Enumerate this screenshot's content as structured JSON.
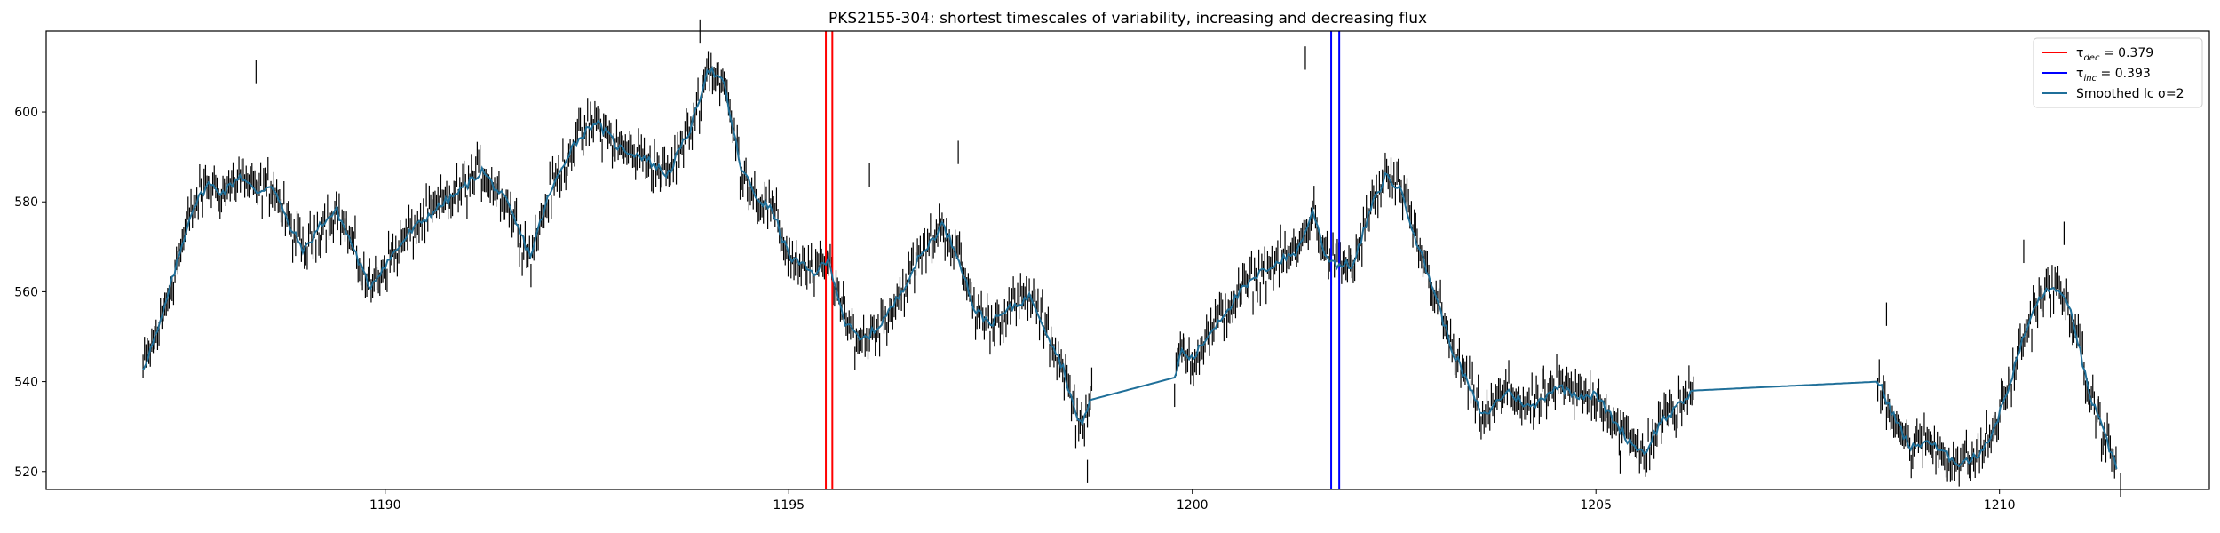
{
  "chart_data": {
    "type": "line",
    "title": "PKS2155-304: shortest timescales of variability, increasing and decreasing flux",
    "xlabel": "",
    "ylabel": "",
    "xlim": [
      1185.8,
      1212.6
    ],
    "ylim": [
      516,
      618
    ],
    "xticks": [
      1190,
      1195,
      1200,
      1205,
      1210
    ],
    "yticks": [
      520,
      540,
      560,
      580,
      600
    ],
    "grid": false,
    "legend_position": "top-right",
    "colors": {
      "dec": "#ff0000",
      "inc": "#0000ff",
      "smoothed": "#1f6f99",
      "errorbars": "#000000"
    },
    "vlines": [
      {
        "name": "dec",
        "x": [
          1195.46,
          1195.54
        ],
        "color": "#ff0000"
      },
      {
        "name": "inc",
        "x": [
          1201.72,
          1201.82
        ],
        "color": "#0000ff"
      }
    ],
    "legend": {
      "dec": {
        "symbol": "τ",
        "sub": "dec",
        "text": " = 0.379"
      },
      "inc": {
        "symbol": "τ",
        "sub": "inc",
        "text": " = 0.393"
      },
      "smoothed": {
        "text": "Smoothed lc σ=2"
      }
    },
    "smoothed_anchors": [
      [
        1187.0,
        543
      ],
      [
        1187.2,
        552
      ],
      [
        1187.4,
        565
      ],
      [
        1187.6,
        578
      ],
      [
        1187.8,
        584
      ],
      [
        1188.0,
        582
      ],
      [
        1188.2,
        586
      ],
      [
        1188.4,
        582
      ],
      [
        1188.6,
        584
      ],
      [
        1188.8,
        575
      ],
      [
        1189.0,
        569
      ],
      [
        1189.2,
        575
      ],
      [
        1189.4,
        578
      ],
      [
        1189.6,
        570
      ],
      [
        1189.8,
        561
      ],
      [
        1190.0,
        566
      ],
      [
        1190.3,
        573
      ],
      [
        1190.6,
        578
      ],
      [
        1190.9,
        582
      ],
      [
        1191.2,
        587
      ],
      [
        1191.5,
        580
      ],
      [
        1191.8,
        568
      ],
      [
        1192.0,
        580
      ],
      [
        1192.3,
        592
      ],
      [
        1192.6,
        598
      ],
      [
        1192.9,
        592
      ],
      [
        1193.2,
        590
      ],
      [
        1193.5,
        586
      ],
      [
        1193.8,
        597
      ],
      [
        1194.0,
        610
      ],
      [
        1194.2,
        606
      ],
      [
        1194.4,
        588
      ],
      [
        1194.6,
        581
      ],
      [
        1194.8,
        578
      ],
      [
        1195.0,
        568
      ],
      [
        1195.3,
        564
      ],
      [
        1195.5,
        567
      ],
      [
        1195.7,
        553
      ],
      [
        1195.9,
        549
      ],
      [
        1196.1,
        552
      ],
      [
        1196.3,
        557
      ],
      [
        1196.6,
        567
      ],
      [
        1196.9,
        575
      ],
      [
        1197.1,
        568
      ],
      [
        1197.3,
        556
      ],
      [
        1197.5,
        553
      ],
      [
        1197.8,
        557
      ],
      [
        1198.0,
        559
      ],
      [
        1198.2,
        551
      ],
      [
        1198.4,
        543
      ],
      [
        1198.6,
        530
      ],
      [
        1198.75,
        536
      ],
      [
        1199.8,
        541
      ],
      [
        1199.85,
        547
      ],
      [
        1200.0,
        545
      ],
      [
        1200.3,
        553
      ],
      [
        1200.6,
        560
      ],
      [
        1200.9,
        565
      ],
      [
        1201.1,
        567
      ],
      [
        1201.3,
        569
      ],
      [
        1201.5,
        578
      ],
      [
        1201.65,
        568
      ],
      [
        1201.8,
        566
      ],
      [
        1202.0,
        566
      ],
      [
        1202.2,
        578
      ],
      [
        1202.4,
        586
      ],
      [
        1202.6,
        582
      ],
      [
        1202.8,
        570
      ],
      [
        1203.0,
        560
      ],
      [
        1203.2,
        548
      ],
      [
        1203.4,
        540
      ],
      [
        1203.6,
        532
      ],
      [
        1203.9,
        538
      ],
      [
        1204.2,
        534
      ],
      [
        1204.5,
        539
      ],
      [
        1204.8,
        537
      ],
      [
        1205.0,
        537
      ],
      [
        1205.2,
        532
      ],
      [
        1205.4,
        527
      ],
      [
        1205.6,
        524
      ],
      [
        1205.8,
        531
      ],
      [
        1206.0,
        534
      ],
      [
        1206.2,
        538
      ],
      [
        1208.5,
        540
      ],
      [
        1208.7,
        532
      ],
      [
        1208.9,
        525
      ],
      [
        1209.1,
        527
      ],
      [
        1209.3,
        524
      ],
      [
        1209.5,
        522
      ],
      [
        1209.7,
        523
      ],
      [
        1209.9,
        528
      ],
      [
        1210.1,
        538
      ],
      [
        1210.3,
        550
      ],
      [
        1210.5,
        559
      ],
      [
        1210.7,
        561
      ],
      [
        1210.9,
        555
      ],
      [
        1211.1,
        538
      ],
      [
        1211.3,
        528
      ],
      [
        1211.45,
        521
      ]
    ],
    "segment_breaks": [
      [
        1198.75,
        1199.8
      ],
      [
        1206.2,
        1208.5
      ]
    ],
    "errorbar_halfwidth": 2.6
  }
}
